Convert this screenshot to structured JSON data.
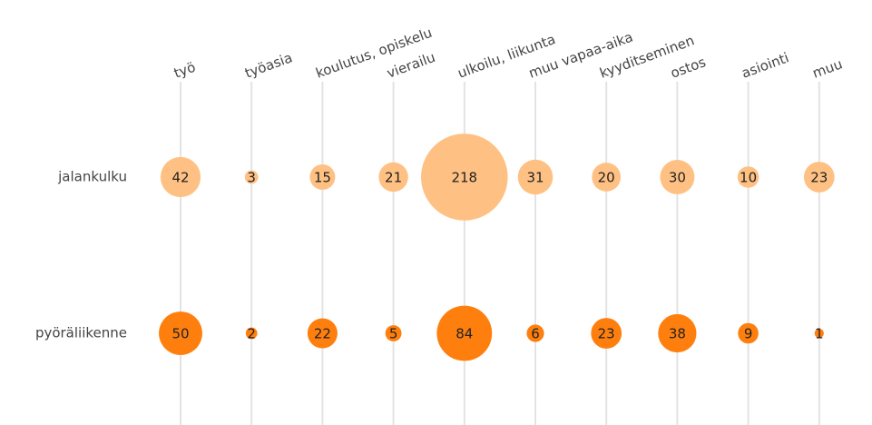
{
  "chart_data": {
    "type": "bubble",
    "categories": [
      "työ",
      "työasia",
      "koulutus, opiskelu",
      "vierailu",
      "ulkoilu, liikunta",
      "muu vapaa-aika",
      "kyyditseminen",
      "ostos",
      "asiointi",
      "muu"
    ],
    "series": [
      {
        "name": "jalankulku",
        "color": "#ffc183",
        "values": [
          42,
          3,
          15,
          21,
          218,
          31,
          20,
          30,
          10,
          23
        ]
      },
      {
        "name": "pyöräliikenne",
        "color": "#ff7f0e",
        "values": [
          50,
          2,
          22,
          5,
          84,
          6,
          23,
          38,
          9,
          1
        ]
      }
    ]
  }
}
